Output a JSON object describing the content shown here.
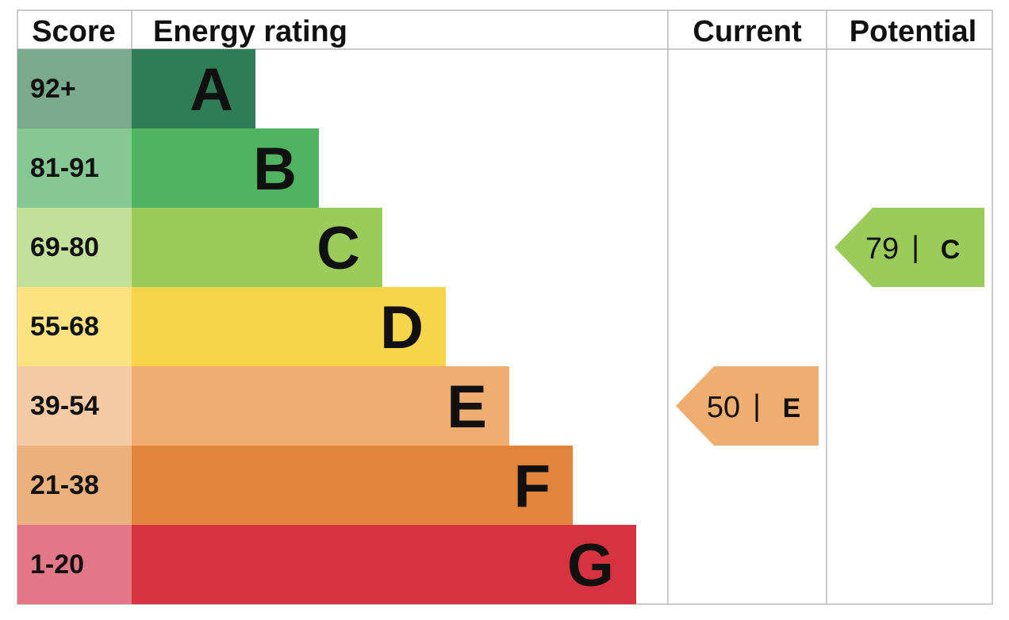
{
  "chart_data": {
    "type": "table",
    "headers": {
      "score": "Score",
      "energy_rating": "Energy rating",
      "current": "Current",
      "potential": "Potential"
    },
    "bands": [
      {
        "letter": "A",
        "score": "92+",
        "color": "#2e7d56",
        "score_bg": "#7aa98e"
      },
      {
        "letter": "B",
        "score": "81-91",
        "color": "#4fb35f",
        "score_bg": "#86c893"
      },
      {
        "letter": "C",
        "score": "69-80",
        "color": "#9bcb5a",
        "score_bg": "#c3e09a"
      },
      {
        "letter": "D",
        "score": "55-68",
        "color": "#f6d54a",
        "score_bg": "#fae37e"
      },
      {
        "letter": "E",
        "score": "39-54",
        "color": "#efad6f",
        "score_bg": "#f4cba5"
      },
      {
        "letter": "F",
        "score": "21-38",
        "color": "#e0853b",
        "score_bg": "#eab07e"
      },
      {
        "letter": "G",
        "score": "1-20",
        "color": "#d63342",
        "score_bg": "#e27887"
      }
    ],
    "current": {
      "value": 50,
      "value_text": "50",
      "separator": "|",
      "letter": "E",
      "color": "#efad6f"
    },
    "potential": {
      "value": 79,
      "value_text": "79",
      "separator": "|",
      "letter": "C",
      "color": "#9bcb5a"
    }
  }
}
